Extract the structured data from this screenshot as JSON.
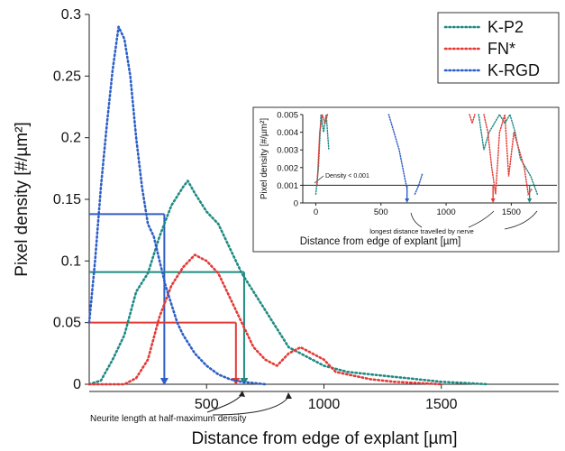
{
  "chart_data": {
    "type": "line",
    "title": "",
    "xlabel": "Distance from edge of explant [µm]",
    "ylabel": "Pixel density [#/µm²]",
    "xlim": [
      0,
      2000
    ],
    "ylim": [
      0,
      0.3
    ],
    "x_ticks": [
      "500",
      "1000",
      "1500"
    ],
    "y_ticks": [
      "0",
      "0.05",
      "0.1",
      "0.15",
      "0.2",
      "0.25",
      "0.3"
    ],
    "legend": {
      "placement": "top-right"
    },
    "series": [
      {
        "name": "K-P2",
        "color": "#1f8a82",
        "style": "dotted",
        "x": [
          0,
          50,
          100,
          150,
          200,
          250,
          300,
          350,
          400,
          420,
          450,
          500,
          550,
          600,
          650,
          700,
          750,
          800,
          850,
          900,
          1000,
          1100,
          1200,
          1300,
          1400,
          1500,
          1600,
          1700
        ],
        "y": [
          0,
          0.003,
          0.02,
          0.04,
          0.075,
          0.09,
          0.12,
          0.145,
          0.16,
          0.165,
          0.155,
          0.14,
          0.13,
          0.11,
          0.09,
          0.075,
          0.06,
          0.045,
          0.03,
          0.025,
          0.015,
          0.01,
          0.008,
          0.006,
          0.004,
          0.002,
          0.001,
          0
        ]
      },
      {
        "name": "FN*",
        "color": "#e53935",
        "style": "dotted",
        "x": [
          0,
          150,
          200,
          250,
          300,
          350,
          400,
          450,
          500,
          550,
          600,
          650,
          700,
          750,
          800,
          850,
          900,
          950,
          1000,
          1050,
          1100,
          1200,
          1300,
          1400,
          1500
        ],
        "y": [
          0,
          0,
          0.005,
          0.02,
          0.055,
          0.08,
          0.095,
          0.105,
          0.1,
          0.09,
          0.07,
          0.05,
          0.03,
          0.02,
          0.015,
          0.025,
          0.03,
          0.025,
          0.02,
          0.01,
          0.008,
          0.004,
          0.002,
          0.001,
          0
        ]
      },
      {
        "name": "K-RGD",
        "color": "#2e5fc7",
        "style": "dotted",
        "x": [
          0,
          25,
          50,
          75,
          100,
          125,
          150,
          175,
          200,
          225,
          250,
          275,
          300,
          325,
          350,
          375,
          400,
          450,
          500,
          550,
          600,
          650,
          700,
          750
        ],
        "y": [
          0.05,
          0.1,
          0.16,
          0.21,
          0.255,
          0.29,
          0.28,
          0.25,
          0.2,
          0.16,
          0.13,
          0.12,
          0.1,
          0.08,
          0.065,
          0.05,
          0.04,
          0.025,
          0.015,
          0.008,
          0.004,
          0.002,
          0.001,
          0
        ]
      }
    ],
    "half_max_markers": [
      {
        "series": "K-RGD",
        "level": 0.138,
        "x": 320,
        "color": "#2e5fc7"
      },
      {
        "series": "K-P2",
        "level": 0.091,
        "x": 660,
        "color": "#1f8a82"
      },
      {
        "series": "FN*",
        "level": 0.05,
        "x": 625,
        "color": "#e53935"
      }
    ],
    "annotations": [
      "Neurite length at half-maximum density"
    ],
    "inset": {
      "type": "line",
      "xlabel": "Distance from edge of explant [µm]",
      "ylabel": "Pixel density [#/µm²]",
      "xlim": [
        -100,
        1850
      ],
      "ylim": [
        0,
        0.005
      ],
      "x_ticks": [
        "0",
        "500",
        "1000",
        "1500"
      ],
      "y_ticks": [
        "0",
        "0.001",
        "0.002",
        "0.003",
        "0.004",
        "0.005"
      ],
      "threshold": {
        "value": 0.001,
        "label": "Density < 0.001"
      },
      "annotation": "longest distance travelled by nerve",
      "markers": [
        {
          "series": "K-RGD",
          "x": 700,
          "color": "#2e5fc7"
        },
        {
          "series": "FN*",
          "x": 1360,
          "color": "#e53935"
        },
        {
          "series": "K-P2",
          "x": 1640,
          "color": "#1f8a82"
        }
      ],
      "series": [
        {
          "name": "K-P2",
          "color": "#1f8a82",
          "segments": [
            {
              "x": [
                0,
                20,
                40,
                60,
                80,
                100
              ],
              "y": [
                0.0005,
                0.002,
                0.005,
                0.004,
                0.005,
                0.003
              ]
            },
            {
              "x": [
                1250,
                1290,
                1330,
                1370,
                1410,
                1450,
                1490,
                1530,
                1570,
                1610,
                1650,
                1700
              ],
              "y": [
                0.005,
                0.003,
                0.004,
                0.0045,
                0.005,
                0.0045,
                0.005,
                0.004,
                0.0025,
                0.002,
                0.0015,
                0.0005
              ]
            }
          ]
        },
        {
          "name": "FN*",
          "color": "#e53935",
          "segments": [
            {
              "x": [
                10,
                30,
                50,
                70,
                90
              ],
              "y": [
                0.001,
                0.004,
                0.005,
                0.0045,
                0.005
              ]
            },
            {
              "x": [
                1180,
                1200,
                1220
              ],
              "y": [
                0.005,
                0.0045,
                0.005
              ]
            },
            {
              "x": [
                1290,
                1320,
                1350,
                1380,
                1410,
                1450,
                1480,
                1520,
                1560,
                1600,
                1630,
                1660
              ],
              "y": [
                0.005,
                0.004,
                0.002,
                0.0005,
                0.004,
                0.005,
                0.0015,
                0.004,
                0.003,
                0.002,
                0.0005,
                0.0008
              ]
            }
          ]
        },
        {
          "name": "K-RGD",
          "color": "#2e5fc7",
          "segments": [
            {
              "x": [
                560,
                600,
                640,
                680,
                700
              ],
              "y": [
                0.005,
                0.004,
                0.003,
                0.0015,
                0.0008
              ]
            },
            {
              "x": [
                760,
                790,
                820
              ],
              "y": [
                0.0005,
                0.001,
                0.0017
              ]
            }
          ]
        }
      ]
    }
  }
}
